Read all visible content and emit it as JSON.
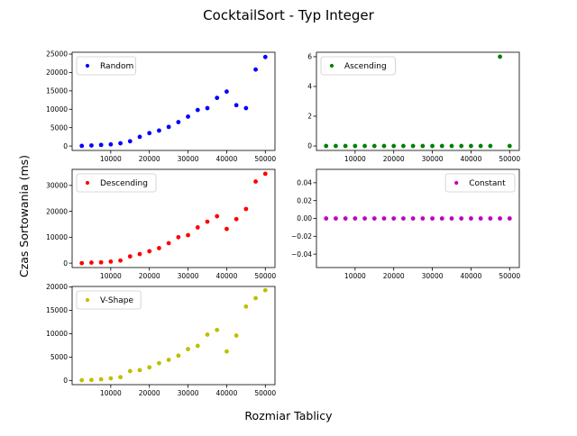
{
  "title": "CocktailSort - Typ Integer",
  "xlabel": "Rozmiar Tablicy",
  "ylabel": "Czas Sortowania (ms)",
  "chart_data": [
    {
      "type": "scatter",
      "panel": "top-left",
      "legend": "top-left",
      "series": [
        {
          "name": "Random",
          "color": "#0000ff",
          "x": [
            2500,
            5000,
            7500,
            10000,
            12500,
            15000,
            17500,
            20000,
            22500,
            25000,
            27500,
            30000,
            32500,
            35000,
            37500,
            40000,
            42500,
            45000,
            47500,
            50000
          ],
          "y": [
            50,
            150,
            300,
            450,
            750,
            1300,
            2500,
            3500,
            4200,
            5200,
            6500,
            8000,
            9800,
            10300,
            13100,
            14800,
            11100,
            10300,
            20800,
            24200
          ]
        }
      ],
      "xticks": [
        10000,
        20000,
        30000,
        40000,
        50000
      ],
      "xtick_labels": [
        "10000",
        "20000",
        "30000",
        "40000",
        "50000"
      ],
      "yticks": [
        0,
        5000,
        10000,
        15000,
        20000,
        25000
      ],
      "ytick_labels": [
        "0",
        "5000",
        "10000",
        "15000",
        "20000",
        "25000"
      ],
      "xlim": [
        0,
        52500
      ],
      "ylim": [
        -1200,
        25500
      ]
    },
    {
      "type": "scatter",
      "panel": "top-right",
      "legend": "top-left",
      "series": [
        {
          "name": "Ascending",
          "color": "#008000",
          "x": [
            2500,
            5000,
            7500,
            10000,
            12500,
            15000,
            17500,
            20000,
            22500,
            25000,
            27500,
            30000,
            32500,
            35000,
            37500,
            40000,
            42500,
            45000,
            47500,
            50000
          ],
          "y": [
            0,
            0,
            0,
            0,
            0,
            0,
            0,
            0,
            0,
            0,
            0,
            0,
            0,
            0,
            0,
            0,
            0,
            0,
            6,
            0
          ]
        }
      ],
      "xticks": [
        10000,
        20000,
        30000,
        40000,
        50000
      ],
      "xtick_labels": [
        "10000",
        "20000",
        "30000",
        "40000",
        "50000"
      ],
      "yticks": [
        0,
        2,
        4,
        6
      ],
      "ytick_labels": [
        "0",
        "2",
        "4",
        "6"
      ],
      "xlim": [
        0,
        52500
      ],
      "ylim": [
        -0.3,
        6.3
      ]
    },
    {
      "type": "scatter",
      "panel": "middle-left",
      "legend": "top-left",
      "series": [
        {
          "name": "Descending",
          "color": "#ff0000",
          "x": [
            2500,
            5000,
            7500,
            10000,
            12500,
            15000,
            17500,
            20000,
            22500,
            25000,
            27500,
            30000,
            32500,
            35000,
            37500,
            40000,
            42500,
            45000,
            47500,
            50000
          ],
          "y": [
            0,
            200,
            300,
            600,
            1000,
            2600,
            3500,
            4600,
            5800,
            7700,
            10000,
            10800,
            13800,
            16000,
            18100,
            13200,
            17000,
            20900,
            31500,
            34500
          ]
        }
      ],
      "xticks": [
        10000,
        20000,
        30000,
        40000,
        50000
      ],
      "xtick_labels": [
        "10000",
        "20000",
        "30000",
        "40000",
        "50000"
      ],
      "yticks": [
        0,
        10000,
        20000,
        30000
      ],
      "ytick_labels": [
        "0",
        "10000",
        "20000",
        "30000"
      ],
      "xlim": [
        0,
        52500
      ],
      "ylim": [
        -1700,
        36200
      ]
    },
    {
      "type": "scatter",
      "panel": "middle-right",
      "legend": "top-right",
      "series": [
        {
          "name": "Constant",
          "color": "#bf00bf",
          "x": [
            2500,
            5000,
            7500,
            10000,
            12500,
            15000,
            17500,
            20000,
            22500,
            25000,
            27500,
            30000,
            32500,
            35000,
            37500,
            40000,
            42500,
            45000,
            47500,
            50000
          ],
          "y": [
            0,
            0,
            0,
            0,
            0,
            0,
            0,
            0,
            0,
            0,
            0,
            0,
            0,
            0,
            0,
            0,
            0,
            0,
            0,
            0
          ]
        }
      ],
      "xticks": [
        10000,
        20000,
        30000,
        40000,
        50000
      ],
      "xtick_labels": [
        "10000",
        "20000",
        "30000",
        "40000",
        "50000"
      ],
      "yticks": [
        -0.04,
        -0.02,
        0,
        0.02,
        0.04
      ],
      "ytick_labels": [
        "−0.04",
        "−0.02",
        "0.00",
        "0.02",
        "0.04"
      ],
      "xlim": [
        0,
        52500
      ],
      "ylim": [
        -0.055,
        0.055
      ]
    },
    {
      "type": "scatter",
      "panel": "bottom-left",
      "legend": "top-left",
      "series": [
        {
          "name": "V-Shape",
          "color": "#bfbf00",
          "x": [
            2500,
            5000,
            7500,
            10000,
            12500,
            15000,
            17500,
            20000,
            22500,
            25000,
            27500,
            30000,
            32500,
            35000,
            37500,
            40000,
            42500,
            45000,
            47500,
            50000
          ],
          "y": [
            50,
            100,
            250,
            450,
            700,
            2000,
            2200,
            2800,
            3700,
            4400,
            5300,
            6700,
            7400,
            9800,
            10800,
            6200,
            9600,
            15800,
            17600,
            19300
          ]
        }
      ],
      "xticks": [
        10000,
        20000,
        30000,
        40000,
        50000
      ],
      "xtick_labels": [
        "10000",
        "20000",
        "30000",
        "40000",
        "50000"
      ],
      "yticks": [
        0,
        5000,
        10000,
        15000,
        20000
      ],
      "ytick_labels": [
        "0",
        "5000",
        "10000",
        "15000",
        "20000"
      ],
      "xlim": [
        0,
        52500
      ],
      "ylim": [
        -900,
        20100
      ]
    }
  ]
}
